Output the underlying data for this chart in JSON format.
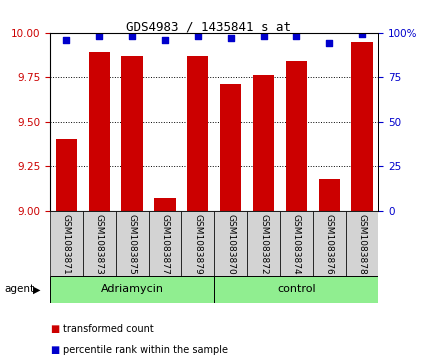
{
  "title": "GDS4983 / 1435841_s_at",
  "samples": [
    "GSM1083871",
    "GSM1083873",
    "GSM1083875",
    "GSM1083877",
    "GSM1083879",
    "GSM1083870",
    "GSM1083872",
    "GSM1083874",
    "GSM1083876",
    "GSM1083878"
  ],
  "groups": [
    "Adriamycin",
    "Adriamycin",
    "Adriamycin",
    "Adriamycin",
    "Adriamycin",
    "control",
    "control",
    "control",
    "control",
    "control"
  ],
  "transformed_count": [
    9.4,
    9.89,
    9.87,
    9.07,
    9.87,
    9.71,
    9.76,
    9.84,
    9.18,
    9.95
  ],
  "percentile_rank": [
    96,
    98,
    98,
    96,
    98,
    97,
    98,
    98,
    94,
    99
  ],
  "ylim_left": [
    9.0,
    10.0
  ],
  "ylim_right": [
    0,
    100
  ],
  "yticks_left": [
    9.0,
    9.25,
    9.5,
    9.75,
    10.0
  ],
  "yticks_right": [
    0,
    25,
    50,
    75,
    100
  ],
  "bar_color": "#cc0000",
  "dot_color": "#0000cc",
  "group_color": "#90ee90",
  "agent_label": "agent",
  "legend_bar": "transformed count",
  "legend_dot": "percentile rank within the sample",
  "tick_label_color_left": "#cc0000",
  "tick_label_color_right": "#0000cc",
  "sample_bg_color": "#d3d3d3",
  "title_fontsize": 9,
  "tick_fontsize": 7.5,
  "label_fontsize": 6.5,
  "group_fontsize": 8,
  "legend_fontsize": 7
}
